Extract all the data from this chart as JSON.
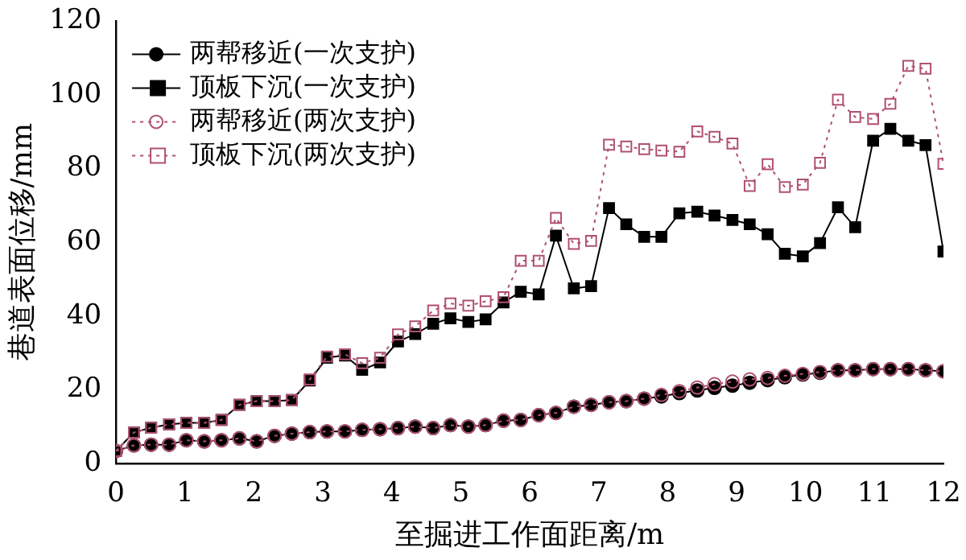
{
  "chart_data": {
    "type": "line",
    "xlabel": "至掘进工作面距离/m",
    "ylabel": "巷道表面位移/mm",
    "x": [
      0,
      0.26,
      0.51,
      0.77,
      1.02,
      1.28,
      1.53,
      1.79,
      2.04,
      2.3,
      2.55,
      2.81,
      3.06,
      3.32,
      3.57,
      3.83,
      4.09,
      4.34,
      4.6,
      4.85,
      5.11,
      5.36,
      5.62,
      5.87,
      6.13,
      6.38,
      6.64,
      6.89,
      7.15,
      7.4,
      7.66,
      7.91,
      8.17,
      8.43,
      8.68,
      8.94,
      9.19,
      9.45,
      9.7,
      9.96,
      10.21,
      10.47,
      10.72,
      10.98,
      11.23,
      11.49,
      11.74,
      12
    ],
    "xlim": [
      0,
      12
    ],
    "xticks": [
      0,
      1,
      2,
      3,
      4,
      5,
      6,
      7,
      8,
      9,
      10,
      11,
      12
    ],
    "ylim": [
      0,
      120
    ],
    "yticks": [
      0,
      20,
      40,
      60,
      80,
      100,
      120
    ],
    "grid": false,
    "legend": "top left",
    "series": [
      {
        "name": "两帮移近(一次支护)",
        "color": "#000000",
        "marker": "circle",
        "line_style": "solid",
        "values": [
          3.4,
          4.9,
          5.1,
          5.1,
          6.3,
          6.0,
          6.3,
          6.8,
          6.0,
          7.5,
          8.1,
          8.5,
          8.7,
          8.7,
          9.1,
          9.3,
          9.6,
          10,
          9.6,
          10.4,
          10,
          10.4,
          11.6,
          11.8,
          13.1,
          13.7,
          15.4,
          15.9,
          16.6,
          16.9,
          17.6,
          18.2,
          19.1,
          19.8,
          20.5,
          21.1,
          21.9,
          22.6,
          23.4,
          24.1,
          24.6,
          25.3,
          25.3,
          25.6,
          25.6,
          25.6,
          25.3,
          25
        ]
      },
      {
        "name": "顶板下沉(一次支护)",
        "color": "#000000",
        "marker": "square",
        "line_style": "solid",
        "values": [
          3.4,
          8.4,
          9.7,
          10.6,
          11,
          11,
          11.8,
          15.9,
          16.9,
          16.9,
          17.2,
          22.5,
          28.7,
          29.3,
          25.4,
          27.4,
          33.1,
          35.1,
          37.9,
          39.4,
          38.4,
          39.1,
          43.7,
          46.6,
          45.9,
          61.8,
          47.5,
          48.1,
          69.3,
          64.9,
          61.5,
          61.5,
          67.9,
          68.3,
          67.3,
          66.1,
          64.9,
          62.2,
          56.9,
          56.2,
          59.8,
          69.5,
          64.1,
          87.6,
          90.8,
          87.6,
          86.4,
          57.5
        ]
      },
      {
        "name": "两帮移近(两次支护)",
        "color": "#b05070",
        "marker": "circle",
        "line_style": "dotted",
        "values": [
          3.4,
          4.9,
          5.1,
          5.1,
          6.3,
          6.0,
          6.3,
          6.8,
          6.0,
          7.5,
          8.1,
          8.5,
          8.7,
          8.7,
          9.1,
          9.3,
          9.6,
          10,
          9.6,
          10.4,
          10,
          10.4,
          11.6,
          11.8,
          13.1,
          13.7,
          15.4,
          15.9,
          16.6,
          16.9,
          17.6,
          18.6,
          19.6,
          20.6,
          21.5,
          22.2,
          22.8,
          23.2,
          23.8,
          24.3,
          24.8,
          25.3,
          25.3,
          25.6,
          25.6,
          25.6,
          25.3,
          25
        ]
      },
      {
        "name": "顶板下沉(两次支护)",
        "color": "#b05070",
        "marker": "square",
        "line_style": "dotted",
        "values": [
          3.4,
          8.4,
          9.7,
          10.6,
          11,
          11,
          11.8,
          15.9,
          16.9,
          16.9,
          17.2,
          22.8,
          29,
          29.6,
          27.2,
          28.7,
          35,
          37.2,
          41.5,
          43.4,
          42.8,
          44,
          45.1,
          55,
          55,
          66.6,
          59.6,
          60.4,
          86.5,
          86,
          85.3,
          84.9,
          84.6,
          90.1,
          88.6,
          86.8,
          75.3,
          81.2,
          75,
          75.7,
          81.6,
          98.7,
          94,
          93.5,
          97.6,
          107.9,
          107.1,
          81.3
        ]
      }
    ]
  }
}
